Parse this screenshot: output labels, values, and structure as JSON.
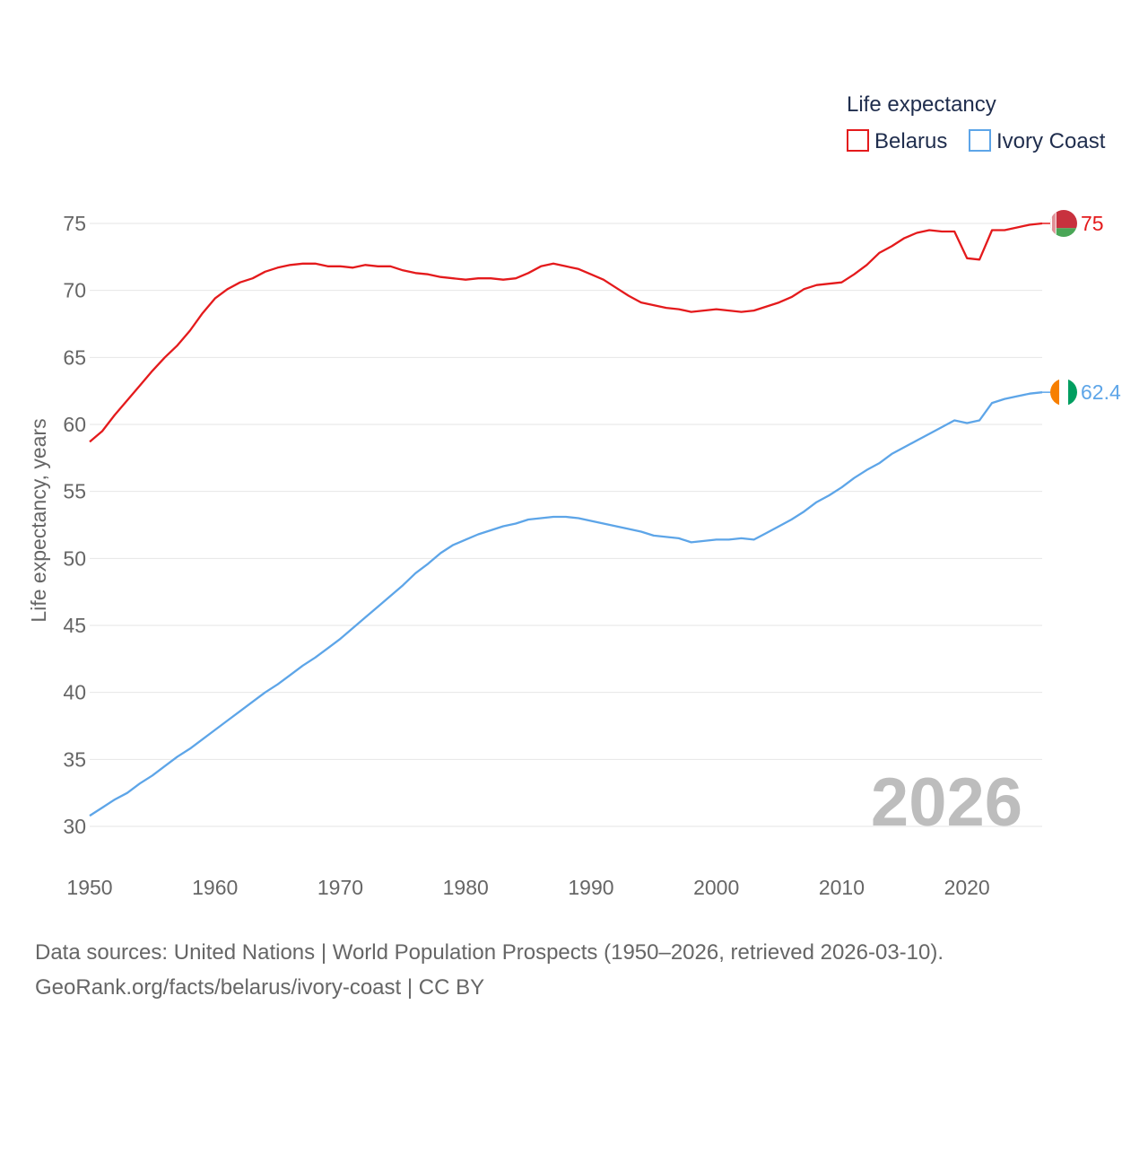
{
  "chart_data": {
    "type": "line",
    "legend_title": "Life expectancy",
    "ylabel": "Life expectancy, years",
    "xlim": [
      1950,
      2026
    ],
    "ylim": [
      30,
      75
    ],
    "yticks": [
      30,
      35,
      40,
      45,
      50,
      55,
      60,
      65,
      70,
      75
    ],
    "xticks": [
      1950,
      1960,
      1970,
      1980,
      1990,
      2000,
      2010,
      2020
    ],
    "year_label": "2026",
    "x": [
      1950,
      1951,
      1952,
      1953,
      1954,
      1955,
      1956,
      1957,
      1958,
      1959,
      1960,
      1961,
      1962,
      1963,
      1964,
      1965,
      1966,
      1967,
      1968,
      1969,
      1970,
      1971,
      1972,
      1973,
      1974,
      1975,
      1976,
      1977,
      1978,
      1979,
      1980,
      1981,
      1982,
      1983,
      1984,
      1985,
      1986,
      1987,
      1988,
      1989,
      1990,
      1991,
      1992,
      1993,
      1994,
      1995,
      1996,
      1997,
      1998,
      1999,
      2000,
      2001,
      2002,
      2003,
      2004,
      2005,
      2006,
      2007,
      2008,
      2009,
      2010,
      2011,
      2012,
      2013,
      2014,
      2015,
      2016,
      2017,
      2018,
      2019,
      2020,
      2021,
      2022,
      2023,
      2024,
      2025,
      2026
    ],
    "series": [
      {
        "name": "Belarus",
        "color": "#e41a1c",
        "end_label": "75",
        "flag": "belarus-flag",
        "values": [
          58.7,
          59.5,
          60.7,
          61.8,
          62.9,
          64.0,
          65.0,
          65.9,
          67.0,
          68.3,
          69.4,
          70.1,
          70.6,
          70.9,
          71.4,
          71.7,
          71.9,
          72.0,
          72.0,
          71.8,
          71.8,
          71.7,
          71.9,
          71.8,
          71.8,
          71.5,
          71.3,
          71.2,
          71.0,
          70.9,
          70.8,
          70.9,
          70.9,
          70.8,
          70.9,
          71.3,
          71.8,
          72.0,
          71.8,
          71.6,
          71.2,
          70.8,
          70.2,
          69.6,
          69.1,
          68.9,
          68.7,
          68.6,
          68.4,
          68.5,
          68.6,
          68.5,
          68.4,
          68.5,
          68.8,
          69.1,
          69.5,
          70.1,
          70.4,
          70.5,
          70.6,
          71.2,
          71.9,
          72.8,
          73.3,
          73.9,
          74.3,
          74.5,
          74.4,
          74.4,
          72.4,
          72.3,
          74.5,
          74.5,
          74.7,
          74.9,
          75.0
        ]
      },
      {
        "name": "Ivory Coast",
        "color": "#5da5e8",
        "end_label": "62.4",
        "flag": "ivory-coast-flag",
        "values": [
          30.8,
          31.4,
          32.0,
          32.5,
          33.2,
          33.8,
          34.5,
          35.2,
          35.8,
          36.5,
          37.2,
          37.9,
          38.6,
          39.3,
          40.0,
          40.6,
          41.3,
          42.0,
          42.6,
          43.3,
          44.0,
          44.8,
          45.6,
          46.4,
          47.2,
          48.0,
          48.9,
          49.6,
          50.4,
          51.0,
          51.4,
          51.8,
          52.1,
          52.4,
          52.6,
          52.9,
          53.0,
          53.1,
          53.1,
          53.0,
          52.8,
          52.6,
          52.4,
          52.2,
          52.0,
          51.7,
          51.6,
          51.5,
          51.2,
          51.3,
          51.4,
          51.4,
          51.5,
          51.4,
          51.9,
          52.4,
          52.9,
          53.5,
          54.2,
          54.7,
          55.3,
          56.0,
          56.6,
          57.1,
          57.8,
          58.3,
          58.8,
          59.3,
          59.8,
          60.3,
          60.1,
          60.3,
          61.6,
          61.9,
          62.1,
          62.3,
          62.4
        ]
      }
    ]
  },
  "footer": {
    "source_line": "Data sources: United Nations | World Population Prospects (1950–2026, retrieved 2026-03-10).",
    "credit_line": "GeoRank.org/facts/belarus/ivory-coast | CC BY"
  }
}
